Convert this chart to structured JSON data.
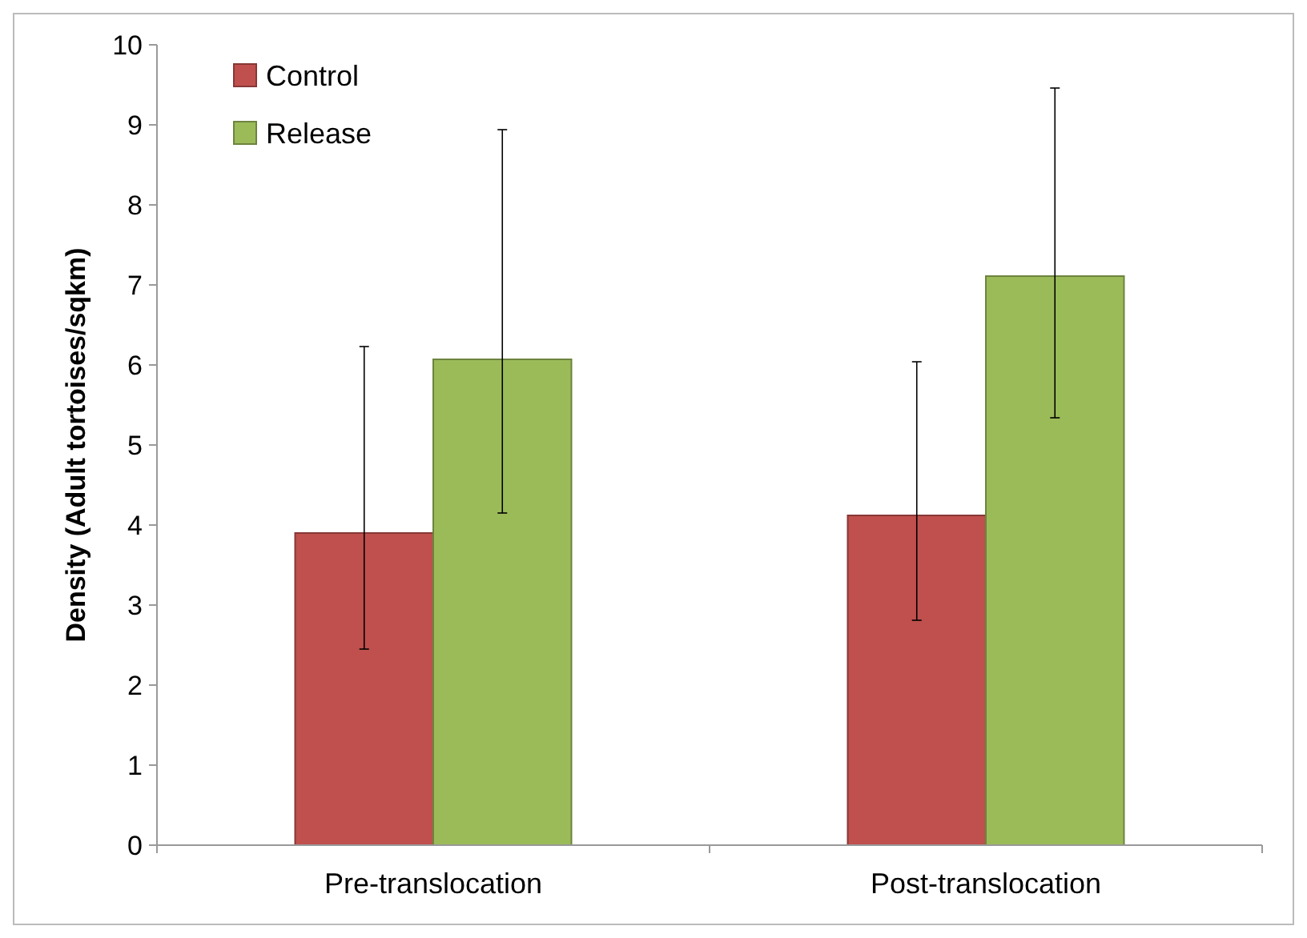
{
  "chart_data": {
    "type": "bar",
    "ylabel": "Density (Adult tortoises/sqkm)",
    "categories": [
      "Pre-translocation",
      "Post-translocation"
    ],
    "series": [
      {
        "name": "Control",
        "color": "#c0504d",
        "values": [
          3.9,
          4.12
        ],
        "errors": [
          [
            2.45,
            6.23
          ],
          [
            2.81,
            6.04
          ]
        ]
      },
      {
        "name": "Release",
        "color": "#9bbb59",
        "values": [
          6.07,
          7.11
        ],
        "errors": [
          [
            4.15,
            8.94
          ],
          [
            5.34,
            9.46
          ]
        ]
      }
    ],
    "ylim": [
      0,
      10
    ],
    "yticks": [
      0,
      1,
      2,
      3,
      4,
      5,
      6,
      7,
      8,
      9,
      10
    ],
    "grid": false,
    "legend": "top left"
  }
}
